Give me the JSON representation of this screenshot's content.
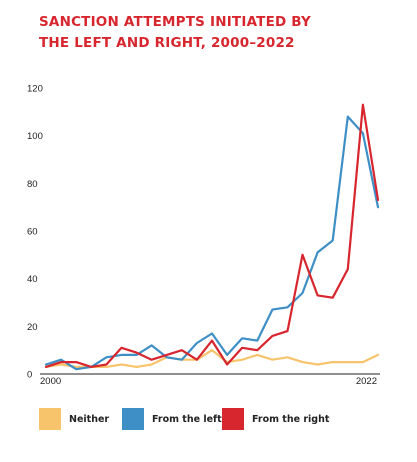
{
  "chart_data": {
    "type": "line",
    "title_lines": [
      "Sanction attempts initiated by",
      "the left and right, 2000–2022"
    ],
    "x": [
      2000,
      2001,
      2002,
      2003,
      2004,
      2005,
      2006,
      2007,
      2008,
      2009,
      2010,
      2011,
      2012,
      2013,
      2014,
      2015,
      2016,
      2017,
      2018,
      2019,
      2020,
      2021,
      2022
    ],
    "x_tick_labels": [
      "2000",
      "2022"
    ],
    "y_ticks": [
      0,
      20,
      40,
      60,
      80,
      100,
      120
    ],
    "ylim": [
      0,
      120
    ],
    "grid": false,
    "legend_position": "bottom",
    "series": [
      {
        "name": "Neither",
        "color": "#f7c46c",
        "values": [
          3,
          4,
          3,
          3,
          3,
          4,
          3,
          4,
          7,
          6,
          6,
          10,
          5,
          6,
          8,
          6,
          7,
          5,
          4,
          5,
          5,
          5,
          8
        ]
      },
      {
        "name": "From the left",
        "color": "#3e8fc6",
        "values": [
          4,
          6,
          2,
          3,
          7,
          8,
          8,
          12,
          7,
          6,
          13,
          17,
          8,
          15,
          14,
          27,
          28,
          34,
          51,
          56,
          108,
          101,
          70
        ]
      },
      {
        "name": "From the right",
        "color": "#d7262e",
        "values": [
          3,
          5,
          5,
          3,
          4,
          11,
          9,
          6,
          8,
          10,
          6,
          14,
          4,
          11,
          10,
          16,
          18,
          50,
          33,
          32,
          44,
          113,
          73
        ]
      }
    ]
  }
}
